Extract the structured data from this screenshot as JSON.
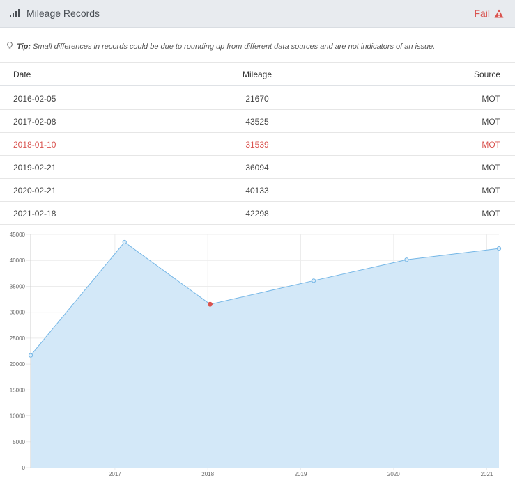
{
  "header": {
    "title": "Mileage Records",
    "status": "Fail",
    "signal_icon": "signal-bars-icon",
    "warning_icon": "warning-triangle-icon",
    "status_color": "#d9534f"
  },
  "tip": {
    "label": "Tip:",
    "text": "Small differences in records could be due to rounding up from different data sources and are not indicators of an issue.",
    "icon": "lightbulb-icon"
  },
  "table": {
    "columns": [
      "Date",
      "Mileage",
      "Source"
    ],
    "rows": [
      {
        "date": "2016-02-05",
        "mileage": "21670",
        "source": "MOT",
        "fail": false
      },
      {
        "date": "2017-02-08",
        "mileage": "43525",
        "source": "MOT",
        "fail": false
      },
      {
        "date": "2018-01-10",
        "mileage": "31539",
        "source": "MOT",
        "fail": true
      },
      {
        "date": "2019-02-21",
        "mileage": "36094",
        "source": "MOT",
        "fail": false
      },
      {
        "date": "2020-02-21",
        "mileage": "40133",
        "source": "MOT",
        "fail": false
      },
      {
        "date": "2021-02-18",
        "mileage": "42298",
        "source": "MOT",
        "fail": false
      }
    ]
  },
  "chart_data": {
    "type": "area",
    "x": [
      "2016-02-05",
      "2017-02-08",
      "2018-01-10",
      "2019-02-21",
      "2020-02-21",
      "2021-02-18"
    ],
    "values": [
      21670,
      43525,
      31539,
      36094,
      40133,
      42298
    ],
    "highlight_index": 2,
    "x_tick_labels": [
      "2017",
      "2018",
      "2019",
      "2020",
      "2021"
    ],
    "y_ticks": [
      0,
      5000,
      10000,
      15000,
      20000,
      25000,
      30000,
      35000,
      40000,
      45000
    ],
    "ylim": [
      0,
      45000
    ],
    "grid": true,
    "line_color": "#74b6e6",
    "fill_color": "#d3e8f8",
    "highlight_color": "#d9534f"
  }
}
